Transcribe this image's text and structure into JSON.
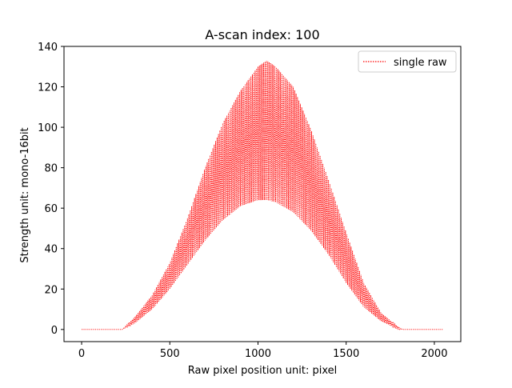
{
  "chart_data": {
    "type": "line",
    "title": "A-scan index: 100",
    "xlabel": "Raw pixel position unit: pixel",
    "ylabel": "Strength unit: mono-16bit",
    "xlim": [
      -100,
      2150
    ],
    "ylim": [
      -6,
      140
    ],
    "xticks": [
      0,
      500,
      1000,
      1500,
      2000
    ],
    "yticks": [
      0,
      20,
      40,
      60,
      80,
      100,
      120,
      140
    ],
    "grid": false,
    "legend_position": "top-right",
    "series": [
      {
        "name": "single raw",
        "color": "#ff0000",
        "line_style": "dotted",
        "x_start": 0,
        "x_end": 2047,
        "signal_start": 230,
        "signal_end": 1820,
        "envelope": {
          "x": [
            0,
            230,
            300,
            400,
            500,
            600,
            700,
            800,
            900,
            1000,
            1050,
            1100,
            1200,
            1300,
            1400,
            1500,
            1600,
            1700,
            1800,
            1820,
            2047
          ],
          "upper": [
            0,
            0,
            6,
            17,
            33,
            55,
            80,
            102,
            118,
            130,
            133,
            130,
            120,
            99,
            74,
            48,
            23,
            8,
            1,
            0,
            0
          ],
          "lower": [
            0,
            0,
            3,
            10,
            20,
            32,
            44,
            54,
            61,
            64,
            64,
            63,
            58,
            49,
            37,
            23,
            11,
            4,
            0,
            0,
            0
          ]
        }
      }
    ]
  }
}
